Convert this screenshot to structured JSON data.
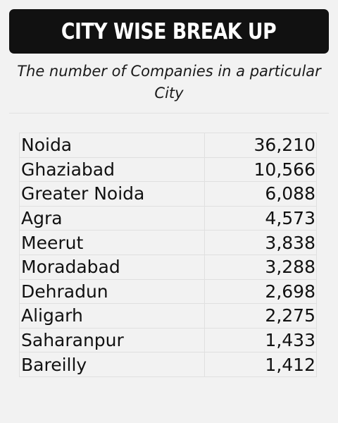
{
  "header": {
    "title": "CITY WISE BREAK UP",
    "subtitle": "The number of Companies in a particular City"
  },
  "colors": {
    "title_bg": "#111111",
    "title_text": "#ffffff",
    "background": "#f2f2f2",
    "text": "#111111"
  },
  "chart_data": {
    "type": "table",
    "title": "CITY WISE BREAK UP",
    "subtitle": "The number of Companies in a particular City",
    "rows": [
      {
        "city": "Noida",
        "companies": "36,210"
      },
      {
        "city": "Ghaziabad",
        "companies": "10,566"
      },
      {
        "city": "Greater Noida",
        "companies": "6,088"
      },
      {
        "city": "Agra",
        "companies": "4,573"
      },
      {
        "city": "Meerut",
        "companies": "3,838"
      },
      {
        "city": "Moradabad",
        "companies": "3,288"
      },
      {
        "city": "Dehradun",
        "companies": "2,698"
      },
      {
        "city": "Aligarh",
        "companies": "2,275"
      },
      {
        "city": "Saharanpur",
        "companies": "1,433"
      },
      {
        "city": "Bareilly",
        "companies": "1,412"
      }
    ]
  }
}
